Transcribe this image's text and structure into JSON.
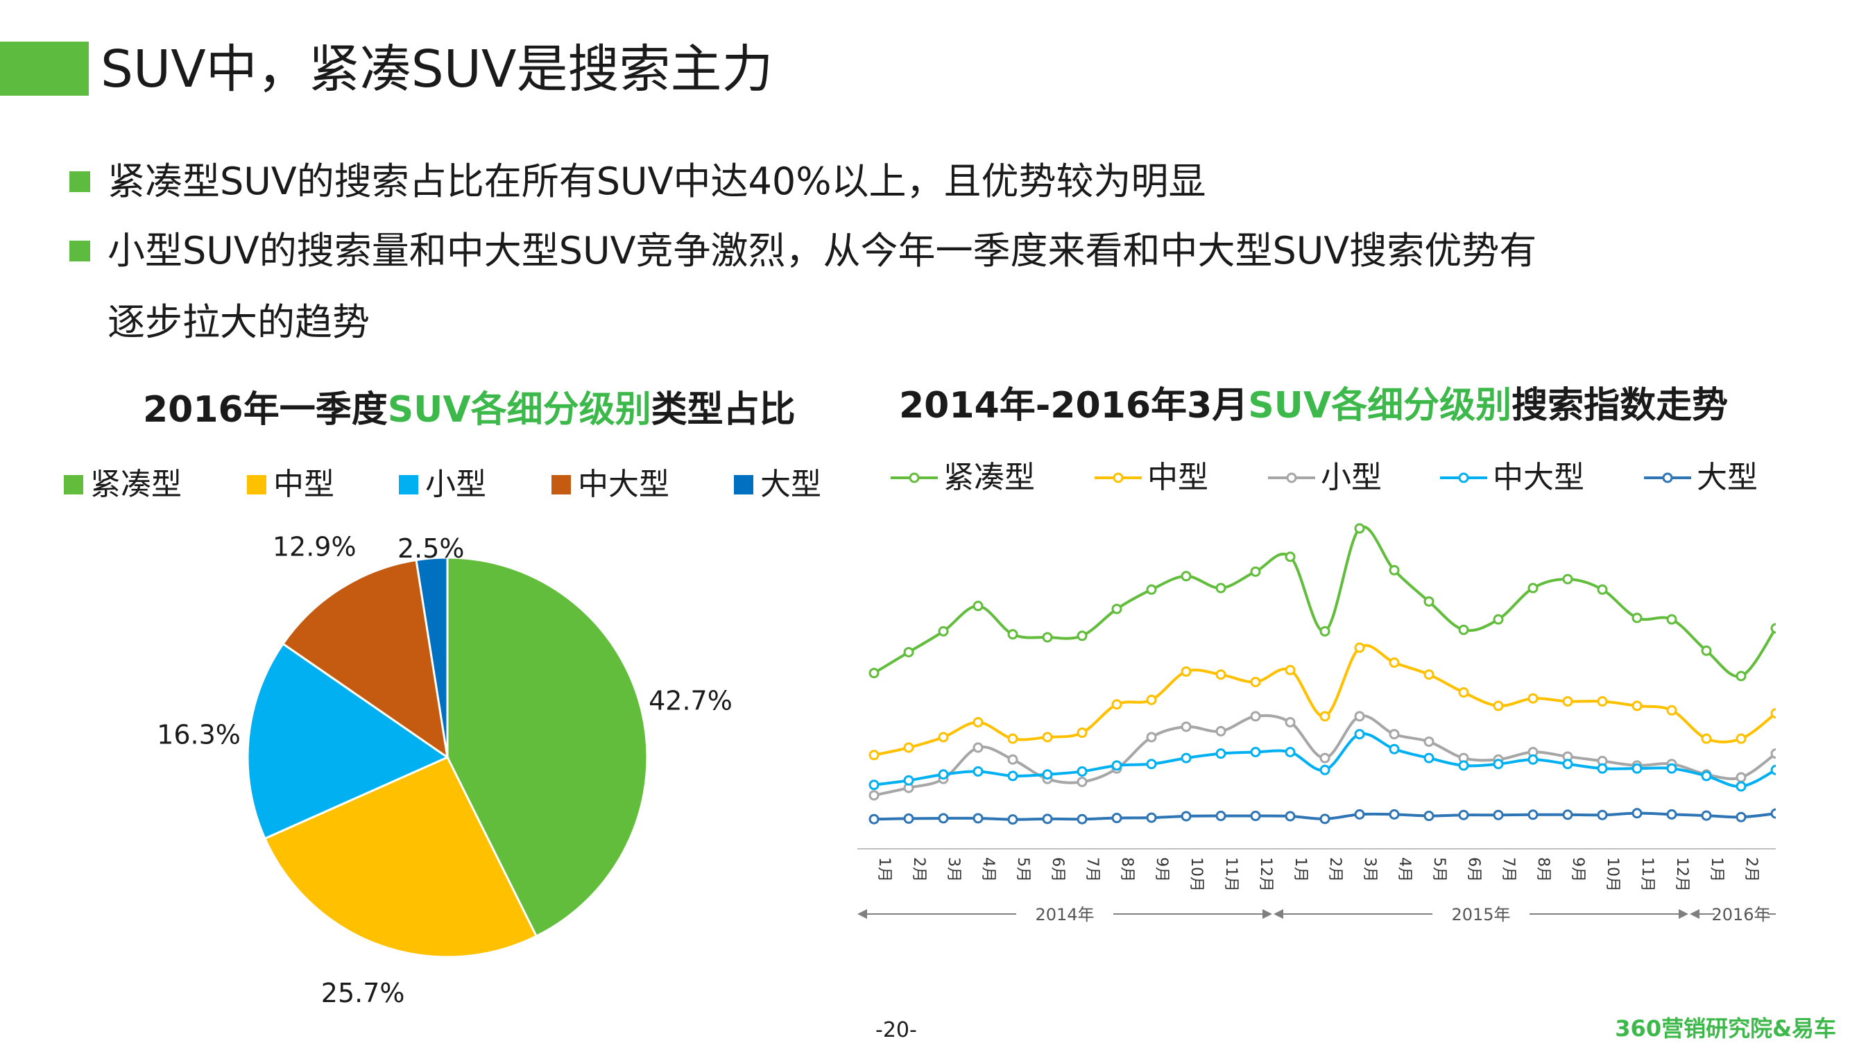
{
  "header": {
    "title": "SUV中，紧凑SUV是搜索主力"
  },
  "bullets": [
    "紧凑型SUV的搜索占比在所有SUV中达40%以上，且优势较为明显",
    "小型SUV的搜索量和中大型SUV竞争激烈，从今年一季度来看和中大型SUV搜索优势有",
    "逐步拉大的趋势"
  ],
  "pie": {
    "title_pre": "2016年一季度",
    "title_hl": "SUV各细分级别",
    "title_post": "类型占比"
  },
  "line": {
    "title_pre": "2014年-2016年3月",
    "title_hl": "SUV各细分级别",
    "title_post": "搜索指数走势"
  },
  "chart_data": [
    {
      "type": "pie",
      "title": "2016年一季度SUV各细分级别类型占比",
      "legend_placement": "top",
      "slices": [
        {
          "name": "紧凑型",
          "value": 42.7,
          "label": "42.7%",
          "color": "#62bd3c"
        },
        {
          "name": "中型",
          "value": 25.7,
          "label": "25.7%",
          "color": "#ffc000"
        },
        {
          "name": "小型",
          "value": 16.3,
          "label": "16.3%",
          "color": "#00b0f0"
        },
        {
          "name": "中大型",
          "value": 12.9,
          "label": "12.9%",
          "color": "#c55a11"
        },
        {
          "name": "大型",
          "value": 2.5,
          "label": "2.5%",
          "color": "#0070c0"
        }
      ]
    },
    {
      "type": "line",
      "title": "2014年-2016年3月SUV各细分级别搜索指数走势",
      "legend_placement": "top",
      "categories": [
        "1月",
        "2月",
        "3月",
        "4月",
        "5月",
        "6月",
        "7月",
        "8月",
        "9月",
        "10月",
        "11月",
        "12月",
        "1月",
        "2月",
        "3月",
        "4月",
        "5月",
        "6月",
        "7月",
        "8月",
        "9月",
        "10月",
        "11月",
        "12月",
        "1月",
        "2月",
        "3月"
      ],
      "year_groups": [
        {
          "label": "2014年",
          "start": 0,
          "end": 11
        },
        {
          "label": "2015年",
          "start": 12,
          "end": 23
        },
        {
          "label": "2016年",
          "start": 24,
          "end": 26
        }
      ],
      "ylim": [
        0,
        100
      ],
      "series": [
        {
          "name": "紧凑型",
          "color": "#62bd3c",
          "values": [
            51.5,
            58.5,
            65.5,
            74,
            64.5,
            63.5,
            64,
            73,
            79.5,
            84,
            80,
            85.5,
            90.5,
            65.5,
            100,
            86,
            75.5,
            66,
            69.5,
            80,
            83,
            79.5,
            70,
            69.5,
            59,
            50.5,
            66.5
          ]
        },
        {
          "name": "中型",
          "color": "#ffc000",
          "values": [
            24,
            26.5,
            30,
            35,
            29.5,
            30,
            31.5,
            41,
            42.5,
            52,
            51,
            48.5,
            52.5,
            37,
            60,
            55,
            51,
            45,
            40.5,
            43,
            42,
            42,
            40.5,
            39,
            29.5,
            29.5,
            38
          ]
        },
        {
          "name": "小型",
          "color": "#a6a6a6",
          "values": [
            10.5,
            13,
            16,
            26.5,
            22.5,
            16,
            15,
            19.5,
            30,
            33.5,
            32,
            37,
            35,
            23,
            37,
            31,
            28.5,
            23,
            22.5,
            25,
            23.5,
            22,
            20.5,
            21,
            17.5,
            16.5,
            24.5
          ]
        },
        {
          "name": "中大型",
          "color": "#00b0f0",
          "values": [
            14,
            15.5,
            17.5,
            18.5,
            17,
            17.5,
            18.5,
            20.5,
            21,
            23,
            24.5,
            25,
            25,
            19,
            31,
            26,
            23,
            20.5,
            21,
            22.5,
            21,
            19.5,
            19.5,
            19.5,
            17,
            13.5,
            19
          ]
        },
        {
          "name": "大型",
          "color": "#2e75b6",
          "values": [
            2.5,
            2.7,
            2.8,
            2.8,
            2.4,
            2.6,
            2.5,
            2.9,
            3,
            3.5,
            3.6,
            3.6,
            3.5,
            2.6,
            4.1,
            4.1,
            3.6,
            3.9,
            3.9,
            4,
            4,
            3.9,
            4.5,
            4.1,
            3.7,
            3.2,
            4.4
          ]
        }
      ]
    }
  ],
  "footer": {
    "page": "-20-",
    "source": "360营销研究院&易车"
  }
}
